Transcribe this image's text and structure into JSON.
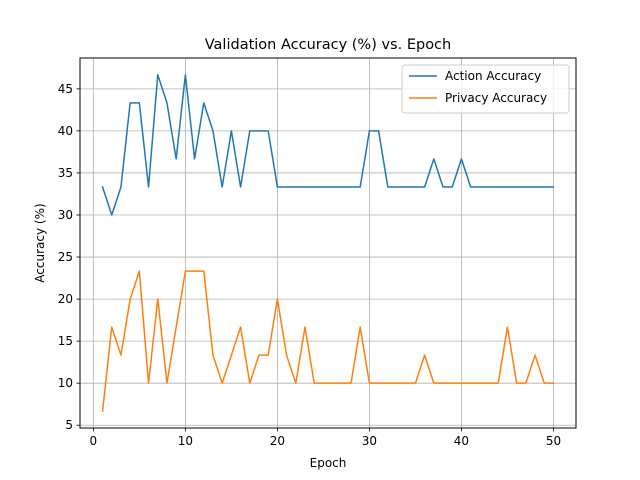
{
  "chart_data": {
    "type": "line",
    "title": "Validation Accuracy (%) vs. Epoch",
    "xlabel": "Epoch",
    "ylabel": "Accuracy (%)",
    "xlim": [
      -1.45,
      52.45
    ],
    "ylim": [
      4.67,
      48.67
    ],
    "xticks": [
      0,
      10,
      20,
      30,
      40,
      50
    ],
    "yticks": [
      5,
      10,
      15,
      20,
      25,
      30,
      35,
      40,
      45
    ],
    "grid": true,
    "legend_position": "top-right",
    "x": [
      1,
      2,
      3,
      4,
      5,
      6,
      7,
      8,
      9,
      10,
      11,
      12,
      13,
      14,
      15,
      16,
      17,
      18,
      19,
      20,
      21,
      22,
      23,
      24,
      25,
      26,
      27,
      28,
      29,
      30,
      31,
      32,
      33,
      34,
      35,
      36,
      37,
      38,
      39,
      40,
      41,
      42,
      43,
      44,
      45,
      46,
      47,
      48,
      49,
      50
    ],
    "series": [
      {
        "name": "Action Accuracy",
        "color": "#1f77b4",
        "values": [
          33.33,
          30.0,
          33.33,
          43.33,
          43.33,
          33.33,
          46.67,
          43.33,
          36.67,
          46.67,
          36.67,
          43.33,
          40.0,
          33.33,
          40.0,
          33.33,
          40.0,
          40.0,
          40.0,
          33.33,
          33.33,
          33.33,
          33.33,
          33.33,
          33.33,
          33.33,
          33.33,
          33.33,
          33.33,
          40.0,
          40.0,
          33.33,
          33.33,
          33.33,
          33.33,
          33.33,
          36.67,
          33.33,
          33.33,
          36.67,
          33.33,
          33.33,
          33.33,
          33.33,
          33.33,
          33.33,
          33.33,
          33.33,
          33.33,
          33.33
        ]
      },
      {
        "name": "Privacy Accuracy",
        "color": "#ff7f0e",
        "values": [
          6.67,
          16.67,
          13.33,
          20.0,
          23.33,
          10.0,
          20.0,
          10.0,
          16.67,
          23.33,
          23.33,
          23.33,
          13.33,
          10.0,
          13.33,
          16.67,
          10.0,
          13.33,
          13.33,
          20.0,
          13.33,
          10.0,
          16.67,
          10.0,
          10.0,
          10.0,
          10.0,
          10.0,
          16.67,
          10.0,
          10.0,
          10.0,
          10.0,
          10.0,
          10.0,
          13.33,
          10.0,
          10.0,
          10.0,
          10.0,
          10.0,
          10.0,
          10.0,
          10.0,
          16.67,
          10.0,
          10.0,
          13.33,
          10.0,
          10.0
        ]
      }
    ]
  }
}
